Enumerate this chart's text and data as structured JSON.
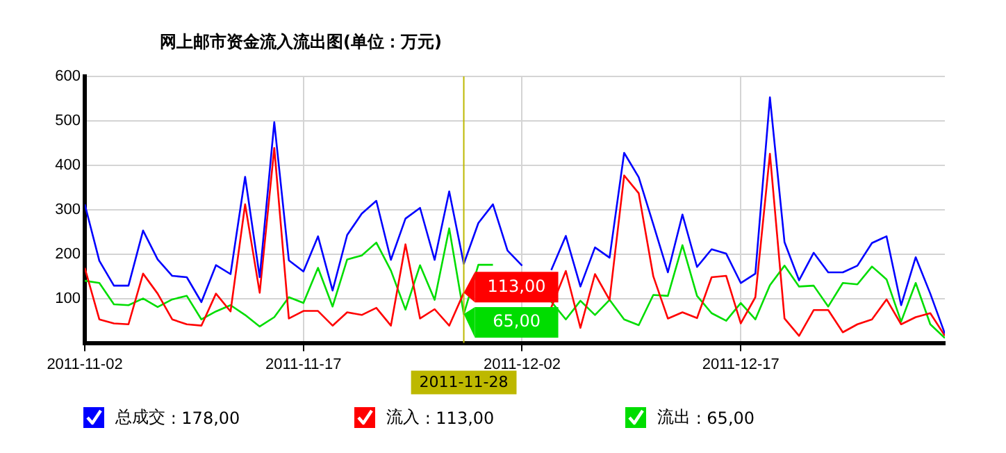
{
  "chart_data": {
    "type": "line",
    "title": "网上邮市资金流入流出图(单位：万元)",
    "x": [
      "2011-11-02",
      "2011-11-03",
      "2011-11-04",
      "2011-11-05",
      "2011-11-06",
      "2011-11-07",
      "2011-11-08",
      "2011-11-09",
      "2011-11-10",
      "2011-11-11",
      "2011-11-12",
      "2011-11-13",
      "2011-11-14",
      "2011-11-15",
      "2011-11-16",
      "2011-11-17",
      "2011-11-18",
      "2011-11-19",
      "2011-11-20",
      "2011-11-21",
      "2011-11-22",
      "2011-11-23",
      "2011-11-24",
      "2011-11-25",
      "2011-11-26",
      "2011-11-27",
      "2011-11-28",
      "2011-11-29",
      "2011-11-30",
      "2011-12-01",
      "2011-12-02",
      "2011-12-03",
      "2011-12-04",
      "2011-12-05",
      "2011-12-06",
      "2011-12-07",
      "2011-12-08",
      "2011-12-09",
      "2011-12-10",
      "2011-12-11",
      "2011-12-12",
      "2011-12-13",
      "2011-12-14",
      "2011-12-15",
      "2011-12-16",
      "2011-12-17",
      "2011-12-18",
      "2011-12-19",
      "2011-12-20",
      "2011-12-21",
      "2011-12-22",
      "2011-12-23",
      "2011-12-24",
      "2011-12-25",
      "2011-12-26",
      "2011-12-27",
      "2011-12-28",
      "2011-12-29",
      "2011-12-30",
      "2011-12-31"
    ],
    "series": [
      {
        "name": "总成交",
        "color": "#0000ff",
        "values": [
          312,
          185,
          129,
          129,
          253,
          188,
          151,
          148,
          92,
          175,
          155,
          374,
          148,
          497,
          186,
          161,
          240,
          118,
          243,
          291,
          320,
          187,
          280,
          304,
          187,
          341,
          178,
          270,
          312,
          208,
          174,
          null,
          164,
          241,
          127,
          215,
          192,
          428,
          373,
          267,
          159,
          289,
          171,
          211,
          201,
          135,
          156,
          553,
          227,
          141,
          203,
          159,
          159,
          174,
          225,
          240,
          85,
          193,
          111,
          21
        ]
      },
      {
        "name": "流入",
        "color": "#ff0000",
        "values": [
          169,
          53,
          44,
          42,
          156,
          111,
          53,
          42,
          39,
          111,
          71,
          312,
          113,
          439,
          55,
          72,
          72,
          39,
          69,
          63,
          79,
          39,
          222,
          55,
          76,
          39,
          113,
          null,
          null,
          null,
          null,
          null,
          80,
          162,
          34,
          155,
          97,
          377,
          337,
          150,
          55,
          69,
          56,
          148,
          151,
          44,
          103,
          426,
          55,
          16,
          74,
          74,
          24,
          42,
          53,
          98,
          42,
          58,
          67,
          16
        ]
      },
      {
        "name": "流出",
        "color": "#00dd00",
        "values": [
          140,
          135,
          87,
          85,
          100,
          81,
          98,
          106,
          53,
          71,
          85,
          63,
          37,
          58,
          103,
          90,
          169,
          82,
          188,
          197,
          226,
          163,
          75,
          175,
          97,
          258,
          65,
          176,
          176,
          null,
          null,
          null,
          93,
          53,
          95,
          63,
          97,
          53,
          40,
          108,
          106,
          220,
          106,
          67,
          50,
          90,
          53,
          130,
          174,
          127,
          129,
          82,
          135,
          132,
          172,
          143,
          48,
          135,
          42,
          11
        ]
      }
    ],
    "xlim": [
      "2011-11-02",
      "2011-12-31"
    ],
    "xticks": [
      "2011-11-02",
      "2011-11-17",
      "2011-12-02",
      "2011-12-17"
    ],
    "ylim": [
      0,
      600
    ],
    "yticks": [
      {
        "value": 0,
        "label": null
      },
      100,
      200,
      300,
      400,
      500,
      600
    ],
    "ref_lines": [
      {
        "axis": "x",
        "value": "2011-11-28",
        "label": "2011-11-28",
        "color": "#bdb800"
      }
    ],
    "annotations": [
      {
        "text": "113,00",
        "x": "2011-11-28",
        "y": 113
      },
      {
        "text": "65,00",
        "x": "2011-11-28",
        "y": 65
      },
      ": 178,00",
      ": 113,00",
      ": 65,00"
    ],
    "grid": true,
    "legend": "bottom"
  }
}
